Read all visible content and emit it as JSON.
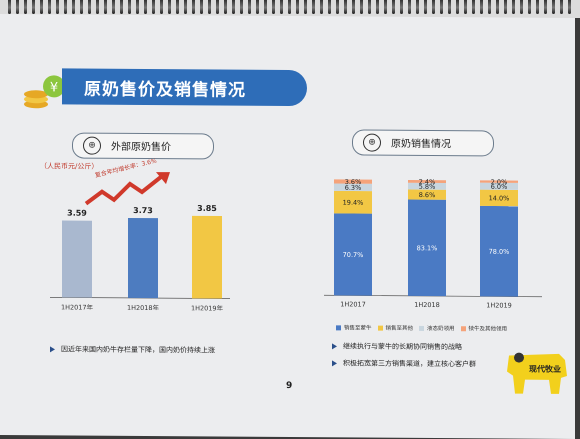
{
  "title": "原奶售价及销售情况",
  "left": {
    "heading": "外部原奶售价",
    "unit": "（人民币元/公斤）",
    "growth": "复合年均增长率：3.6%",
    "chart_data": {
      "type": "bar",
      "categories": [
        "1H2017年",
        "1H2018年",
        "1H2019年"
      ],
      "values": [
        3.59,
        3.73,
        3.85
      ],
      "labels": [
        "3.59",
        "3.73",
        "3.85"
      ],
      "colors": [
        "#a9b8cf",
        "#4d7cc0",
        "#f2c744"
      ]
    },
    "bullet": "因近年来国内奶牛存栏量下降，国内奶价持续上涨"
  },
  "right": {
    "heading": "原奶销售情况",
    "chart_data": {
      "type": "bar",
      "stacked": true,
      "categories": [
        "1H2017",
        "1H2018",
        "1H2019"
      ],
      "series": [
        {
          "name": "销售至蒙牛",
          "values": [
            70.7,
            83.1,
            78.0
          ],
          "labels": [
            "70.7%",
            "83.1%",
            "78.0%"
          ],
          "color": "#4a7ac4"
        },
        {
          "name": "销售至其他",
          "values": [
            19.4,
            8.6,
            14.0
          ],
          "labels": [
            "19.4%",
            "8.6%",
            "14.0%"
          ],
          "color": "#f2c744"
        },
        {
          "name": "液态奶领用",
          "values": [
            6.3,
            5.8,
            6.0
          ],
          "labels": [
            "6.3%",
            "5.8%",
            "6.0%"
          ],
          "color": "#c9d6df"
        },
        {
          "name": "犊牛及其他领用",
          "values": [
            3.6,
            2.4,
            2.0
          ],
          "labels": [
            "3.6%",
            "2.4%",
            "2.0%"
          ],
          "color": "#f5a37a"
        }
      ]
    },
    "bullets": [
      "继续执行与蒙牛的长期协同销售的战略",
      "积极拓宽第三方销售渠道，建立核心客户群"
    ]
  },
  "page_number": "9",
  "brand": "现代牧业"
}
